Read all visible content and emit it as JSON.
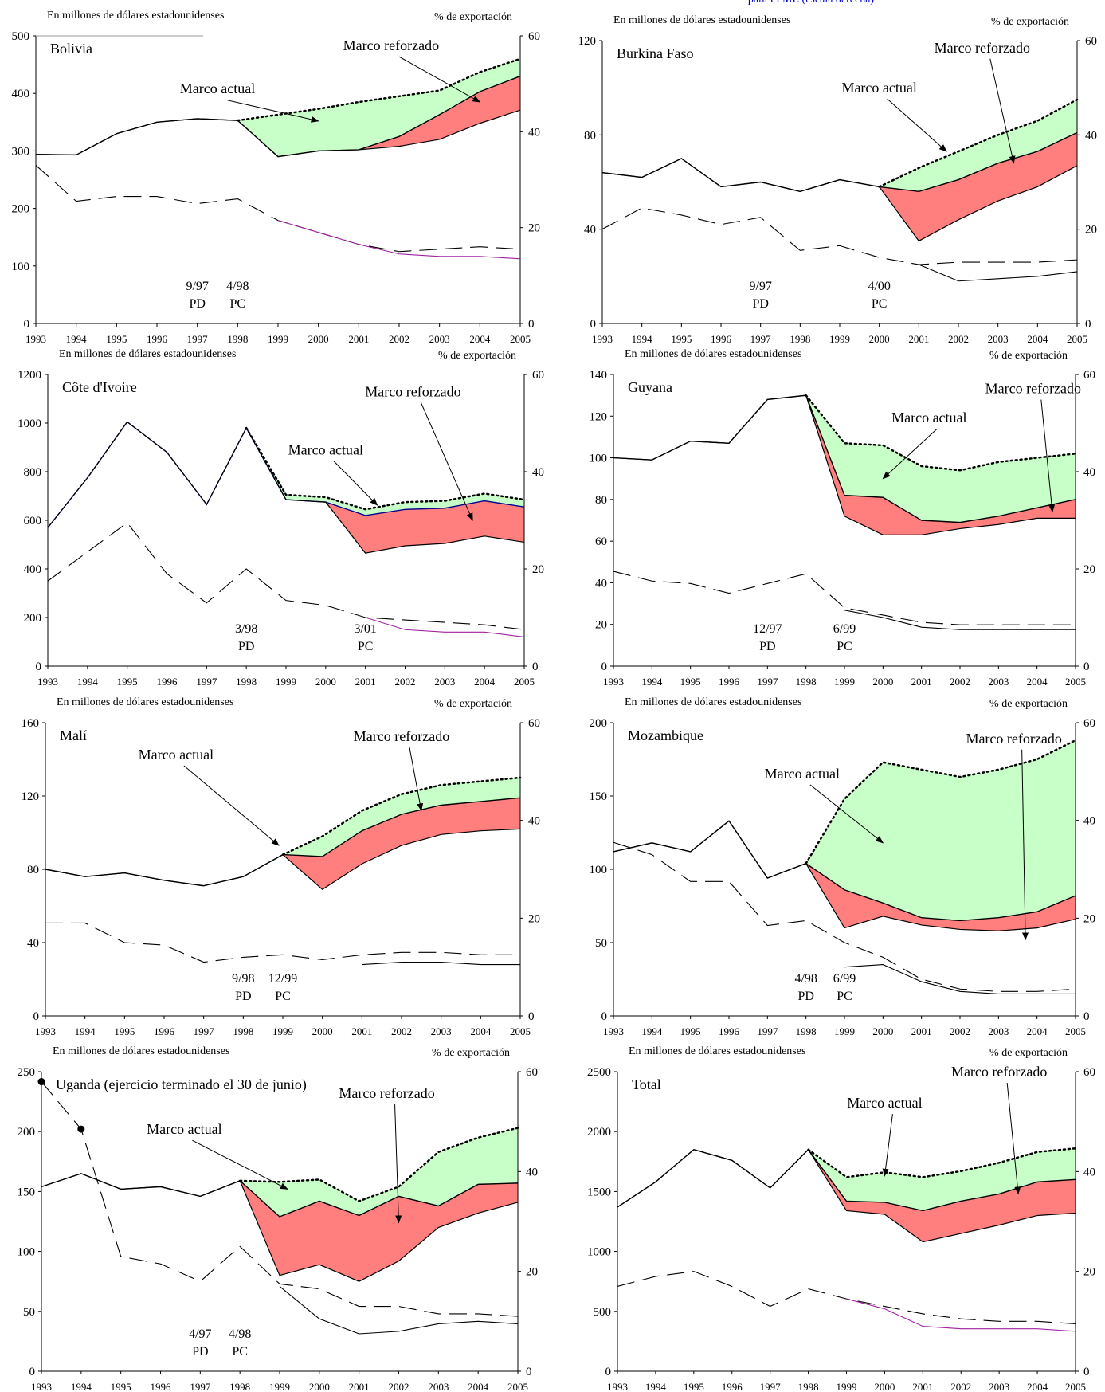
{
  "top_note": "para PPME (escala derecha)",
  "colors": {
    "reinforced_fill": "#ff7f7f",
    "current_fill": "#c8ffc8",
    "line": "#000000",
    "purple": "#a020a0",
    "blue": "#00008b"
  },
  "chart_data": [
    {
      "type": "area",
      "name": "Bolivia",
      "units_left": "En millones de dólares estadounidenses",
      "units_right": "% de exportación",
      "years": [
        1993,
        1994,
        1995,
        1996,
        1997,
        1998,
        1999,
        2000,
        2001,
        2002,
        2003,
        2004,
        2005
      ],
      "ylim": [
        0,
        500
      ],
      "yticks": [
        0,
        100,
        200,
        300,
        400,
        500
      ],
      "y2lim": [
        0,
        60
      ],
      "y2ticks": [
        0,
        20,
        40,
        60
      ],
      "dotted": [
        null,
        null,
        null,
        null,
        null,
        353,
        363,
        373,
        385,
        395,
        405,
        437,
        460
      ],
      "upper": [
        294,
        293,
        330,
        350,
        356,
        353,
        290,
        300,
        302,
        325,
        363,
        403,
        430
      ],
      "lower": [
        294,
        293,
        330,
        350,
        356,
        353,
        290,
        300,
        302,
        308,
        320,
        348,
        371
      ],
      "dashed_pct": [
        33,
        25.5,
        26.5,
        26.5,
        25,
        26,
        21.5,
        19,
        16.5,
        15,
        15.5,
        16,
        15.5
      ],
      "solid_pct": [
        null,
        null,
        null,
        null,
        null,
        null,
        21.5,
        19,
        16.5,
        14.5,
        14,
        14,
        13.5
      ],
      "labels": {
        "current": "Marco actual",
        "reinforced": "Marco reforzado"
      },
      "dates": [
        {
          "year": 1997,
          "date": "9/97",
          "tag": "PD"
        },
        {
          "year": 1998,
          "date": "4/98",
          "tag": "PC"
        }
      ]
    },
    {
      "type": "area",
      "name": "Burkina Faso",
      "units_left": "En millones de dólares estadounidenses",
      "units_right": "% de exportación",
      "years": [
        1993,
        1994,
        1995,
        1996,
        1997,
        1998,
        1999,
        2000,
        2001,
        2002,
        2003,
        2004,
        2005
      ],
      "ylim": [
        0,
        120
      ],
      "yticks": [
        0,
        40,
        80,
        120
      ],
      "y2lim": [
        0,
        60
      ],
      "y2ticks": [
        0,
        20,
        40,
        60
      ],
      "dotted": [
        null,
        null,
        null,
        null,
        null,
        null,
        null,
        58,
        66,
        73,
        80,
        86,
        95
      ],
      "upper": [
        64,
        62,
        70,
        58,
        60,
        56,
        61,
        58,
        56,
        61,
        68,
        73,
        81
      ],
      "lower": [
        64,
        62,
        70,
        58,
        60,
        56,
        61,
        58,
        35,
        44,
        52,
        58,
        67
      ],
      "dashed_pct": [
        20,
        24.5,
        23,
        21,
        22.5,
        15.5,
        16.5,
        14,
        12.5,
        13,
        13,
        13,
        13.5
      ],
      "solid_pct": [
        null,
        null,
        null,
        null,
        null,
        null,
        null,
        null,
        12.5,
        9,
        9.5,
        10,
        11
      ],
      "labels": {
        "current": "Marco actual",
        "reinforced": "Marco reforzado"
      },
      "dates": [
        {
          "year": 1997,
          "date": "9/97",
          "tag": "PD"
        },
        {
          "year": 2000,
          "date": "4/00",
          "tag": "PC"
        }
      ]
    },
    {
      "type": "area",
      "name": "Côte d'Ivoire",
      "units_left": "En millones de dólares estadounidenses",
      "units_right": "% de exportación",
      "years": [
        1993,
        1994,
        1995,
        1996,
        1997,
        1998,
        1999,
        2000,
        2001,
        2002,
        2003,
        2004,
        2005
      ],
      "ylim": [
        0,
        1200
      ],
      "yticks": [
        0,
        200,
        400,
        600,
        800,
        1000,
        1200
      ],
      "y2lim": [
        0,
        60
      ],
      "y2ticks": [
        0,
        20,
        40,
        60
      ],
      "dotted": [
        null,
        null,
        null,
        null,
        null,
        980,
        705,
        695,
        645,
        675,
        680,
        710,
        685
      ],
      "upper": [
        570,
        775,
        1005,
        880,
        665,
        980,
        685,
        675,
        620,
        645,
        650,
        680,
        655
      ],
      "lower": [
        570,
        775,
        1005,
        880,
        665,
        980,
        685,
        675,
        465,
        495,
        505,
        535,
        510
      ],
      "dashed_pct": [
        17.5,
        23.5,
        29.5,
        19,
        13,
        20,
        13.5,
        12.5,
        10,
        9.5,
        9,
        8.5,
        7.5
      ],
      "solid_pct": [
        null,
        null,
        null,
        null,
        null,
        null,
        null,
        null,
        10,
        7.5,
        7,
        7,
        6
      ],
      "labels": {
        "current": "Marco actual",
        "reinforced": "Marco reforzado"
      },
      "dates": [
        {
          "year": 1998,
          "date": "3/98",
          "tag": "PD"
        },
        {
          "year": 2001,
          "date": "3/01",
          "tag": "PC"
        }
      ]
    },
    {
      "type": "area",
      "name": "Guyana",
      "units_left": "En millones de dólares estadounidenses",
      "units_right": "% de exportación",
      "years": [
        1993,
        1994,
        1995,
        1996,
        1997,
        1998,
        1999,
        2000,
        2001,
        2002,
        2003,
        2004,
        2005
      ],
      "ylim": [
        0,
        140
      ],
      "yticks": [
        0,
        20,
        40,
        60,
        80,
        100,
        120,
        140
      ],
      "y2lim": [
        0,
        60
      ],
      "y2ticks": [
        0,
        20,
        40,
        60
      ],
      "dotted": [
        null,
        null,
        null,
        null,
        null,
        130,
        107,
        106,
        96,
        94,
        98,
        100,
        102
      ],
      "upper": [
        100,
        99,
        108,
        107,
        128,
        130,
        82,
        81,
        70,
        69,
        72,
        76,
        80
      ],
      "lower": [
        100,
        99,
        108,
        107,
        128,
        130,
        72,
        63,
        63,
        66,
        68,
        71,
        71
      ],
      "dashed_pct": [
        19.5,
        17.5,
        17,
        15,
        17,
        19,
        12,
        10.5,
        9,
        8.5,
        8.5,
        8.5,
        8.5
      ],
      "solid_pct": [
        null,
        null,
        null,
        null,
        null,
        null,
        11.5,
        10,
        8,
        7.5,
        7.5,
        7.5,
        7.5
      ],
      "labels": {
        "current": "Marco actual",
        "reinforced": "Marco reforzado"
      },
      "dates": [
        {
          "year": 1997,
          "date": "12/97",
          "tag": "PD"
        },
        {
          "year": 1999,
          "date": "6/99",
          "tag": "PC"
        }
      ]
    },
    {
      "type": "area",
      "name": "Malí",
      "units_left": "En millones de dólares estadounidenses",
      "units_right": "% de exportación",
      "years": [
        1993,
        1994,
        1995,
        1996,
        1997,
        1998,
        1999,
        2000,
        2001,
        2002,
        2003,
        2004,
        2005
      ],
      "ylim": [
        0,
        160
      ],
      "yticks": [
        0,
        40,
        80,
        120,
        160
      ],
      "y2lim": [
        0,
        60
      ],
      "y2ticks": [
        0,
        20,
        40,
        60
      ],
      "dotted": [
        null,
        null,
        null,
        null,
        null,
        null,
        88,
        98,
        112,
        121,
        126,
        128,
        130
      ],
      "upper": [
        80,
        76,
        78,
        74,
        71,
        76,
        88,
        87,
        101,
        110,
        115,
        117,
        119
      ],
      "lower": [
        80,
        76,
        78,
        74,
        71,
        76,
        88,
        69,
        83,
        93,
        99,
        101,
        102
      ],
      "dashed_pct": [
        19,
        19,
        15,
        14.5,
        11,
        12,
        12.5,
        11.5,
        12.5,
        13,
        13,
        12.5,
        12.5
      ],
      "solid_pct": [
        null,
        null,
        null,
        null,
        null,
        null,
        null,
        null,
        10.5,
        11,
        11,
        10.5,
        10.5
      ],
      "labels": {
        "current": "Marco actual",
        "reinforced": "Marco reforzado"
      },
      "dates": [
        {
          "year": 1998,
          "date": "9/98",
          "tag": "PD"
        },
        {
          "year": 1999,
          "date": "12/99",
          "tag": "PC"
        }
      ]
    },
    {
      "type": "area",
      "name": "Mozambique",
      "units_left": "En millones de dólares estadounidenses",
      "units_right": "% de exportación",
      "years": [
        1993,
        1994,
        1995,
        1996,
        1997,
        1998,
        1999,
        2000,
        2001,
        2002,
        2003,
        2004,
        2005
      ],
      "ylim": [
        0,
        200
      ],
      "yticks": [
        0,
        50,
        100,
        150,
        200
      ],
      "y2lim": [
        0,
        60
      ],
      "y2ticks": [
        0,
        20,
        40,
        60
      ],
      "dotted": [
        null,
        null,
        null,
        null,
        null,
        104,
        148,
        173,
        168,
        163,
        168,
        175,
        188
      ],
      "upper": [
        112,
        118,
        112,
        133,
        94,
        104,
        86,
        77,
        67,
        65,
        67,
        71,
        82
      ],
      "lower": [
        112,
        118,
        112,
        133,
        94,
        104,
        60,
        68,
        62,
        59,
        58,
        60,
        66
      ],
      "dashed_pct": [
        35.5,
        33,
        27.5,
        27.5,
        18.5,
        19.5,
        15,
        12,
        7.5,
        5.5,
        5,
        5,
        5.5
      ],
      "solid_pct": [
        null,
        null,
        null,
        null,
        null,
        null,
        10,
        10.5,
        7,
        5,
        4.5,
        4.5,
        4.5
      ],
      "labels": {
        "current": "Marco actual",
        "reinforced": "Marco reforzado"
      },
      "dates": [
        {
          "year": 1998,
          "date": "4/98",
          "tag": "PD"
        },
        {
          "year": 1999,
          "date": "6/99",
          "tag": "PC"
        }
      ]
    },
    {
      "type": "area",
      "name": "Uganda (ejercicio terminado el 30 de junio)",
      "units_left": "En millones de dólares estadounidenses",
      "units_right": "% de exportación",
      "years": [
        1993,
        1994,
        1995,
        1996,
        1997,
        1998,
        1999,
        2000,
        2001,
        2002,
        2003,
        2004,
        2005
      ],
      "ylim": [
        0,
        250
      ],
      "yticks": [
        0,
        50,
        100,
        150,
        200,
        250
      ],
      "y2lim": [
        0,
        60
      ],
      "y2ticks": [
        0,
        20,
        40,
        60
      ],
      "dotted": [
        null,
        null,
        null,
        null,
        null,
        159,
        158,
        160,
        142,
        154,
        183,
        195,
        203
      ],
      "upper": [
        154,
        165,
        152,
        154,
        146,
        159,
        129,
        142,
        130,
        146,
        138,
        156,
        157
      ],
      "lower": [
        154,
        165,
        152,
        154,
        146,
        159,
        80,
        89,
        75,
        92,
        120,
        132,
        141
      ],
      "dashed_pct": [
        58,
        48.5,
        23,
        21.5,
        18,
        25,
        17.5,
        16.5,
        13,
        13,
        11.5,
        11.5,
        11
      ],
      "solid_pct": [
        null,
        null,
        null,
        null,
        null,
        null,
        17,
        10.5,
        7.5,
        8,
        9.5,
        10,
        9.5
      ],
      "markers_pct": [
        {
          "year": 1993,
          "value": 58
        },
        {
          "year": 1994,
          "value": 48.5
        }
      ],
      "labels": {
        "current": "Marco actual",
        "reinforced": "Marco reforzado"
      },
      "dates": [
        {
          "year": 1997,
          "date": "4/97",
          "tag": "PD"
        },
        {
          "year": 1998,
          "date": "4/98",
          "tag": "PC"
        }
      ]
    },
    {
      "type": "area",
      "name": "Total",
      "units_left": "En millones de dólares estadounidenses",
      "units_right": "% de exportación",
      "years": [
        1993,
        1994,
        1995,
        1996,
        1997,
        1998,
        1999,
        2000,
        2001,
        2002,
        2003,
        2004,
        2005
      ],
      "ylim": [
        0,
        2500
      ],
      "yticks": [
        0,
        500,
        1000,
        1500,
        2000,
        2500
      ],
      "y2lim": [
        0,
        60
      ],
      "y2ticks": [
        0,
        20,
        40,
        60
      ],
      "dotted": [
        null,
        null,
        null,
        null,
        null,
        1850,
        1620,
        1660,
        1620,
        1670,
        1740,
        1830,
        1860
      ],
      "upper": [
        1370,
        1580,
        1850,
        1760,
        1530,
        1850,
        1420,
        1410,
        1340,
        1420,
        1480,
        1580,
        1600
      ],
      "lower": [
        1370,
        1580,
        1850,
        1760,
        1530,
        1850,
        1340,
        1310,
        1080,
        1150,
        1220,
        1300,
        1320
      ],
      "dashed_pct": [
        17,
        19,
        20,
        17,
        13,
        16.5,
        14.5,
        13,
        11.5,
        10.5,
        10,
        10,
        9.5
      ],
      "solid_pct": [
        null,
        null,
        null,
        null,
        null,
        null,
        14.5,
        12.5,
        9,
        8.5,
        8.5,
        8.5,
        8
      ],
      "labels": {
        "current": "Marco actual",
        "reinforced": "Marco reforzado"
      },
      "dates": []
    }
  ]
}
